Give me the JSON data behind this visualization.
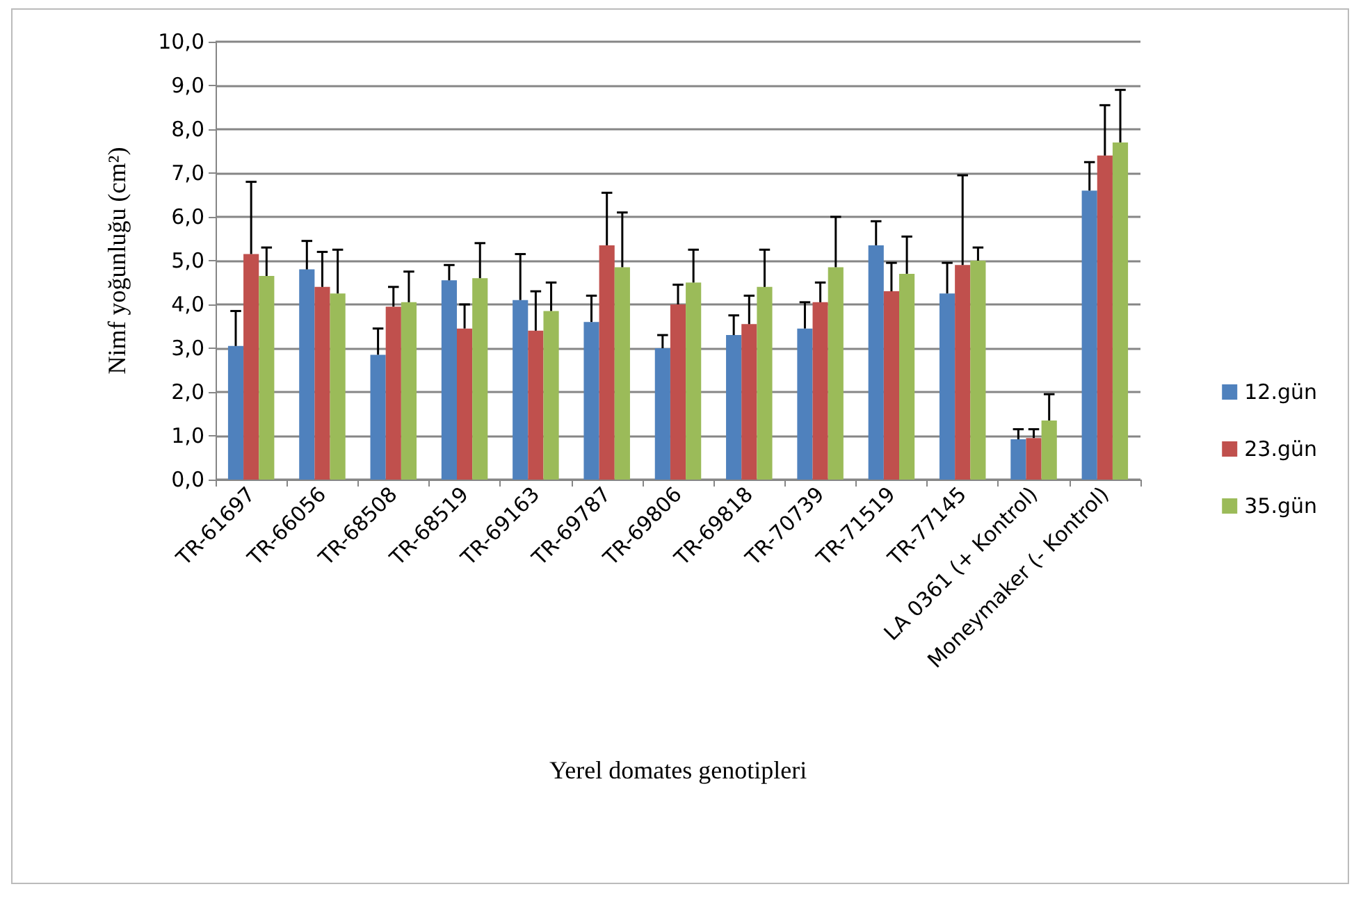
{
  "chart_data": {
    "type": "bar",
    "xlabel": "Yerel domates genotipleri",
    "ylabel": "Nimf yoğunluğu (cm²)",
    "categories": [
      "TR-61697",
      "TR-66056",
      "TR-68508",
      "TR-68519",
      "TR-69163",
      "TR-69787",
      "TR-69806",
      "TR-69818",
      "TR-70739",
      "TR-71519",
      "TR-77145",
      "LA 0361 (+ Kontrol)",
      "Moneymaker (- Kontrol)"
    ],
    "series": [
      {
        "name": "12.gün",
        "color": "#4f81bd",
        "values": [
          3.05,
          4.8,
          2.85,
          4.55,
          4.1,
          3.6,
          3.0,
          3.3,
          3.45,
          5.35,
          4.25,
          0.92,
          6.6
        ],
        "errors": [
          [
            3.05,
            3.85
          ],
          [
            4.8,
            5.45
          ],
          [
            2.85,
            3.45
          ],
          [
            4.55,
            4.9
          ],
          [
            4.1,
            5.15
          ],
          [
            3.6,
            4.2
          ],
          [
            3.0,
            3.3
          ],
          [
            3.3,
            3.75
          ],
          [
            3.45,
            4.05
          ],
          [
            5.35,
            5.9
          ],
          [
            4.25,
            4.95
          ],
          [
            0.92,
            1.15
          ],
          [
            6.6,
            7.25
          ]
        ]
      },
      {
        "name": "23.gün",
        "color": "#c0504d",
        "values": [
          5.15,
          4.4,
          3.95,
          3.45,
          3.4,
          5.35,
          4.0,
          3.55,
          4.05,
          4.3,
          4.9,
          0.95,
          7.4
        ],
        "errors": [
          [
            5.15,
            6.8
          ],
          [
            4.4,
            5.2
          ],
          [
            3.95,
            4.4
          ],
          [
            3.45,
            4.0
          ],
          [
            3.4,
            4.3
          ],
          [
            5.35,
            6.55
          ],
          [
            4.0,
            4.45
          ],
          [
            3.55,
            4.2
          ],
          [
            4.05,
            4.5
          ],
          [
            4.3,
            4.95
          ],
          [
            4.9,
            6.95
          ],
          [
            0.95,
            1.15
          ],
          [
            7.4,
            8.55
          ]
        ]
      },
      {
        "name": "35.gün",
        "color": "#9bbb59",
        "values": [
          4.65,
          4.25,
          4.05,
          4.6,
          3.85,
          4.85,
          4.5,
          4.4,
          4.85,
          4.7,
          5.0,
          1.35,
          7.7
        ],
        "errors": [
          [
            4.65,
            5.3
          ],
          [
            4.25,
            5.25
          ],
          [
            4.05,
            4.75
          ],
          [
            4.6,
            5.4
          ],
          [
            3.85,
            4.5
          ],
          [
            4.85,
            6.1
          ],
          [
            4.5,
            5.25
          ],
          [
            4.4,
            5.25
          ],
          [
            4.85,
            6.0
          ],
          [
            4.7,
            5.55
          ],
          [
            5.0,
            5.3
          ],
          [
            1.35,
            1.95
          ],
          [
            7.7,
            8.9
          ]
        ]
      }
    ],
    "ylim": [
      0,
      10
    ],
    "yticks": [
      {
        "value": 0,
        "label": "0,0"
      },
      {
        "value": 1,
        "label": "1,0"
      },
      {
        "value": 2,
        "label": "2,0"
      },
      {
        "value": 3,
        "label": "3,0"
      },
      {
        "value": 4,
        "label": "4,0"
      },
      {
        "value": 5,
        "label": "5,0"
      },
      {
        "value": 6,
        "label": "6,0"
      },
      {
        "value": 7,
        "label": "7,0"
      },
      {
        "value": 8,
        "label": "8,0"
      },
      {
        "value": 9,
        "label": "9,0"
      },
      {
        "value": 10,
        "label": "10,0"
      }
    ],
    "grid": "y",
    "legend": "right"
  }
}
